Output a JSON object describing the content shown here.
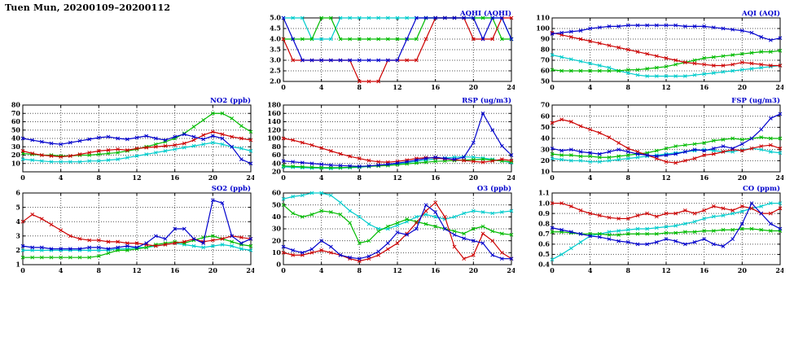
{
  "title": "Tuen Mun, 20200109–20200112",
  "palette": {
    "blue": "#0000cc",
    "red": "#cc0000",
    "green": "#00bb00",
    "cyan": "#00cccc"
  },
  "chart_data": [
    {
      "id": "aqhi",
      "type": "line",
      "title": "AQHI (AQHI)",
      "xmin": 0,
      "xmax": 24,
      "xstep": 4,
      "ymin": 2.0,
      "ymax": 5.0,
      "ystep": 0.5,
      "ydecimals": 1,
      "series": [
        {
          "color": "cyan",
          "values": [
            5,
            5,
            5,
            4,
            4,
            4,
            5,
            5,
            5,
            5,
            5,
            5,
            5,
            5,
            5,
            5,
            5,
            5,
            5,
            5,
            5,
            5,
            5,
            5,
            4
          ]
        },
        {
          "color": "green",
          "values": [
            4,
            4,
            4,
            4,
            5,
            5,
            4,
            4,
            4,
            4,
            4,
            4,
            4,
            4,
            4,
            5,
            5,
            5,
            5,
            5,
            5,
            5,
            5,
            4,
            4
          ]
        },
        {
          "color": "red",
          "values": [
            4,
            3,
            3,
            3,
            3,
            3,
            3,
            3,
            2,
            2,
            2,
            3,
            3,
            3,
            3,
            4,
            5,
            5,
            5,
            5,
            4,
            4,
            4,
            5,
            5
          ]
        },
        {
          "color": "blue",
          "values": [
            5,
            4,
            3,
            3,
            3,
            3,
            3,
            3,
            3,
            3,
            3,
            3,
            3,
            4,
            5,
            5,
            5,
            5,
            5,
            5,
            5,
            4,
            5,
            5,
            4
          ]
        }
      ]
    },
    {
      "id": "aqi",
      "type": "line",
      "title": "AQI (AQI)",
      "xmin": 0,
      "xmax": 24,
      "xstep": 4,
      "ymin": 50,
      "ymax": 110,
      "ystep": 10,
      "ydecimals": 0,
      "series": [
        {
          "color": "cyan",
          "values": [
            75,
            73,
            71,
            69,
            67,
            65,
            63,
            60,
            58,
            56,
            55,
            55,
            55,
            55,
            55,
            56,
            57,
            58,
            59,
            60,
            61,
            62,
            63,
            64,
            65
          ]
        },
        {
          "color": "green",
          "values": [
            61,
            60,
            60,
            60,
            60,
            60,
            60,
            60,
            61,
            61,
            62,
            63,
            64,
            66,
            68,
            70,
            72,
            73,
            74,
            75,
            76,
            77,
            78,
            78,
            79
          ]
        },
        {
          "color": "red",
          "values": [
            96,
            94,
            92,
            90,
            88,
            86,
            84,
            82,
            80,
            78,
            76,
            74,
            72,
            70,
            68,
            67,
            66,
            65,
            65,
            66,
            68,
            67,
            66,
            65,
            65
          ]
        },
        {
          "color": "blue",
          "values": [
            95,
            96,
            97,
            98,
            100,
            101,
            102,
            102,
            103,
            103,
            103,
            103,
            103,
            103,
            102,
            102,
            102,
            101,
            100,
            99,
            98,
            96,
            92,
            89,
            91
          ]
        }
      ]
    },
    {
      "id": "no2",
      "type": "line",
      "title": "NO2 (ppb)",
      "xmin": 0,
      "xmax": 24,
      "xstep": 4,
      "ymin": 0,
      "ymax": 80,
      "ystep": 10,
      "ydecimals": 0,
      "show_ymin_label": false,
      "series": [
        {
          "color": "cyan",
          "values": [
            15,
            14,
            13,
            12,
            12,
            12,
            12,
            13,
            13,
            14,
            15,
            17,
            19,
            21,
            23,
            25,
            27,
            29,
            31,
            33,
            35,
            33,
            30,
            28,
            25
          ]
        },
        {
          "color": "green",
          "values": [
            22,
            21,
            20,
            20,
            19,
            19,
            20,
            20,
            21,
            22,
            23,
            25,
            27,
            30,
            33,
            36,
            40,
            46,
            54,
            62,
            70,
            70,
            64,
            55,
            48
          ]
        },
        {
          "color": "red",
          "values": [
            25,
            22,
            20,
            19,
            18,
            19,
            21,
            23,
            25,
            26,
            27,
            26,
            28,
            29,
            30,
            31,
            32,
            34,
            38,
            44,
            48,
            45,
            42,
            40,
            38
          ]
        },
        {
          "color": "blue",
          "values": [
            40,
            38,
            36,
            34,
            33,
            35,
            37,
            39,
            41,
            42,
            40,
            39,
            41,
            43,
            40,
            38,
            42,
            45,
            42,
            39,
            43,
            40,
            30,
            15,
            10
          ]
        }
      ]
    },
    {
      "id": "rsp",
      "type": "line",
      "title": "RSP (ug/m3)",
      "xmin": 0,
      "xmax": 24,
      "xstep": 4,
      "ymin": 20,
      "ymax": 180,
      "ystep": 20,
      "ydecimals": 0,
      "series": [
        {
          "color": "cyan",
          "values": [
            32,
            31,
            30,
            29,
            29,
            28,
            29,
            30,
            31,
            33,
            35,
            37,
            39,
            42,
            45,
            48,
            51,
            53,
            55,
            56,
            55,
            53,
            50,
            46,
            42
          ]
        },
        {
          "color": "green",
          "values": [
            34,
            33,
            32,
            31,
            30,
            30,
            30,
            31,
            32,
            33,
            34,
            35,
            37,
            39,
            41,
            43,
            45,
            46,
            47,
            48,
            49,
            50,
            48,
            46,
            44
          ]
        },
        {
          "color": "red",
          "values": [
            100,
            96,
            90,
            84,
            77,
            70,
            63,
            57,
            52,
            47,
            44,
            43,
            45,
            48,
            52,
            54,
            53,
            51,
            49,
            47,
            45,
            43,
            46,
            50,
            47
          ]
        },
        {
          "color": "blue",
          "values": [
            46,
            44,
            42,
            40,
            38,
            36,
            35,
            34,
            33,
            34,
            36,
            38,
            41,
            44,
            48,
            52,
            55,
            52,
            50,
            55,
            90,
            160,
            120,
            82,
            60
          ]
        }
      ]
    },
    {
      "id": "fsp",
      "type": "line",
      "title": "FSP (ug/m3)",
      "xmin": 0,
      "xmax": 24,
      "xstep": 4,
      "ymin": 10,
      "ymax": 70,
      "ystep": 10,
      "ydecimals": 0,
      "series": [
        {
          "color": "cyan",
          "values": [
            22,
            21,
            20,
            20,
            19,
            19,
            20,
            21,
            22,
            23,
            24,
            25,
            26,
            27,
            28,
            29,
            30,
            29,
            28,
            28,
            30,
            31,
            30,
            28,
            27
          ]
        },
        {
          "color": "green",
          "values": [
            26,
            25,
            25,
            24,
            24,
            23,
            23,
            24,
            25,
            26,
            27,
            29,
            31,
            33,
            34,
            35,
            36,
            38,
            39,
            40,
            39,
            40,
            41,
            40,
            40
          ]
        },
        {
          "color": "red",
          "values": [
            54,
            57,
            55,
            51,
            48,
            45,
            41,
            36,
            31,
            28,
            25,
            22,
            19,
            18,
            20,
            22,
            25,
            26,
            28,
            30,
            29,
            31,
            33,
            34,
            31
          ]
        },
        {
          "color": "blue",
          "values": [
            31,
            29,
            30,
            28,
            27,
            26,
            28,
            30,
            28,
            26,
            25,
            24,
            25,
            26,
            28,
            30,
            29,
            31,
            33,
            31,
            35,
            40,
            48,
            58,
            62
          ]
        }
      ]
    },
    {
      "id": "so2",
      "type": "line",
      "title": "SO2 (ppb)",
      "xmin": 0,
      "xmax": 24,
      "xstep": 4,
      "ymin": 1,
      "ymax": 6,
      "ystep": 1,
      "ydecimals": 0,
      "series": [
        {
          "color": "cyan",
          "values": [
            2.0,
            2.0,
            2.0,
            2.0,
            2.0,
            2.0,
            2.0,
            2.0,
            2.0,
            2.0,
            2.1,
            2.1,
            2.2,
            2.2,
            2.3,
            2.4,
            2.5,
            2.4,
            2.3,
            2.2,
            2.3,
            2.4,
            2.3,
            2.1,
            2.0
          ]
        },
        {
          "color": "green",
          "values": [
            1.5,
            1.5,
            1.5,
            1.5,
            1.5,
            1.5,
            1.5,
            1.5,
            1.6,
            1.8,
            2.0,
            2.0,
            2.1,
            2.2,
            2.4,
            2.5,
            2.6,
            2.5,
            2.7,
            2.9,
            3.0,
            2.8,
            2.6,
            2.4,
            2.3
          ]
        },
        {
          "color": "red",
          "values": [
            4.0,
            4.5,
            4.2,
            3.8,
            3.4,
            3.0,
            2.8,
            2.7,
            2.7,
            2.6,
            2.6,
            2.5,
            2.5,
            2.4,
            2.3,
            2.4,
            2.5,
            2.6,
            2.8,
            2.6,
            2.7,
            2.8,
            3.0,
            2.9,
            2.8
          ]
        },
        {
          "color": "blue",
          "values": [
            2.3,
            2.2,
            2.2,
            2.1,
            2.1,
            2.1,
            2.1,
            2.2,
            2.2,
            2.1,
            2.2,
            2.3,
            2.2,
            2.5,
            3.0,
            2.8,
            3.5,
            3.5,
            2.8,
            2.5,
            5.5,
            5.3,
            3.0,
            2.5,
            2.8
          ]
        }
      ]
    },
    {
      "id": "o3",
      "type": "line",
      "title": "O3 (ppb)",
      "xmin": 0,
      "xmax": 24,
      "xstep": 4,
      "ymin": 0,
      "ymax": 60,
      "ystep": 10,
      "ydecimals": 0,
      "series": [
        {
          "color": "cyan",
          "values": [
            55,
            57,
            58,
            60,
            60,
            58,
            52,
            45,
            40,
            34,
            30,
            30,
            33,
            36,
            40,
            42,
            40,
            38,
            40,
            43,
            45,
            44,
            43,
            44,
            45
          ]
        },
        {
          "color": "green",
          "values": [
            50,
            43,
            40,
            42,
            45,
            44,
            42,
            35,
            18,
            20,
            28,
            32,
            35,
            38,
            36,
            34,
            32,
            30,
            28,
            26,
            30,
            32,
            28,
            26,
            25
          ]
        },
        {
          "color": "red",
          "values": [
            10,
            8,
            8,
            10,
            12,
            10,
            8,
            5,
            3,
            5,
            8,
            13,
            18,
            26,
            35,
            45,
            52,
            40,
            15,
            5,
            8,
            26,
            20,
            10,
            5
          ]
        },
        {
          "color": "blue",
          "values": [
            15,
            12,
            10,
            13,
            20,
            15,
            8,
            6,
            5,
            7,
            11,
            18,
            27,
            25,
            30,
            50,
            44,
            30,
            25,
            22,
            20,
            18,
            8,
            5,
            5
          ]
        }
      ]
    },
    {
      "id": "co",
      "type": "line",
      "title": "CO (ppm)",
      "xmin": 0,
      "xmax": 24,
      "xstep": 4,
      "ymin": 0.4,
      "ymax": 1.1,
      "ystep": 0.1,
      "ydecimals": 1,
      "series": [
        {
          "color": "cyan",
          "values": [
            0.45,
            0.5,
            0.56,
            0.62,
            0.68,
            0.7,
            0.72,
            0.73,
            0.74,
            0.75,
            0.75,
            0.76,
            0.77,
            0.78,
            0.8,
            0.82,
            0.85,
            0.87,
            0.88,
            0.9,
            0.92,
            0.95,
            0.97,
            1.0,
            1.0
          ]
        },
        {
          "color": "green",
          "values": [
            0.72,
            0.72,
            0.71,
            0.7,
            0.7,
            0.7,
            0.69,
            0.69,
            0.7,
            0.7,
            0.7,
            0.7,
            0.71,
            0.71,
            0.72,
            0.72,
            0.73,
            0.73,
            0.74,
            0.74,
            0.75,
            0.75,
            0.74,
            0.73,
            0.73
          ]
        },
        {
          "color": "red",
          "values": [
            1.0,
            1.0,
            0.97,
            0.93,
            0.9,
            0.88,
            0.86,
            0.85,
            0.85,
            0.88,
            0.9,
            0.87,
            0.9,
            0.9,
            0.93,
            0.9,
            0.93,
            0.97,
            0.95,
            0.93,
            0.97,
            0.95,
            0.9,
            0.9,
            0.95
          ]
        },
        {
          "color": "blue",
          "values": [
            0.76,
            0.74,
            0.72,
            0.7,
            0.68,
            0.67,
            0.65,
            0.63,
            0.62,
            0.6,
            0.6,
            0.62,
            0.65,
            0.63,
            0.6,
            0.62,
            0.65,
            0.6,
            0.58,
            0.65,
            0.8,
            1.0,
            0.9,
            0.8,
            0.75
          ]
        }
      ]
    }
  ]
}
